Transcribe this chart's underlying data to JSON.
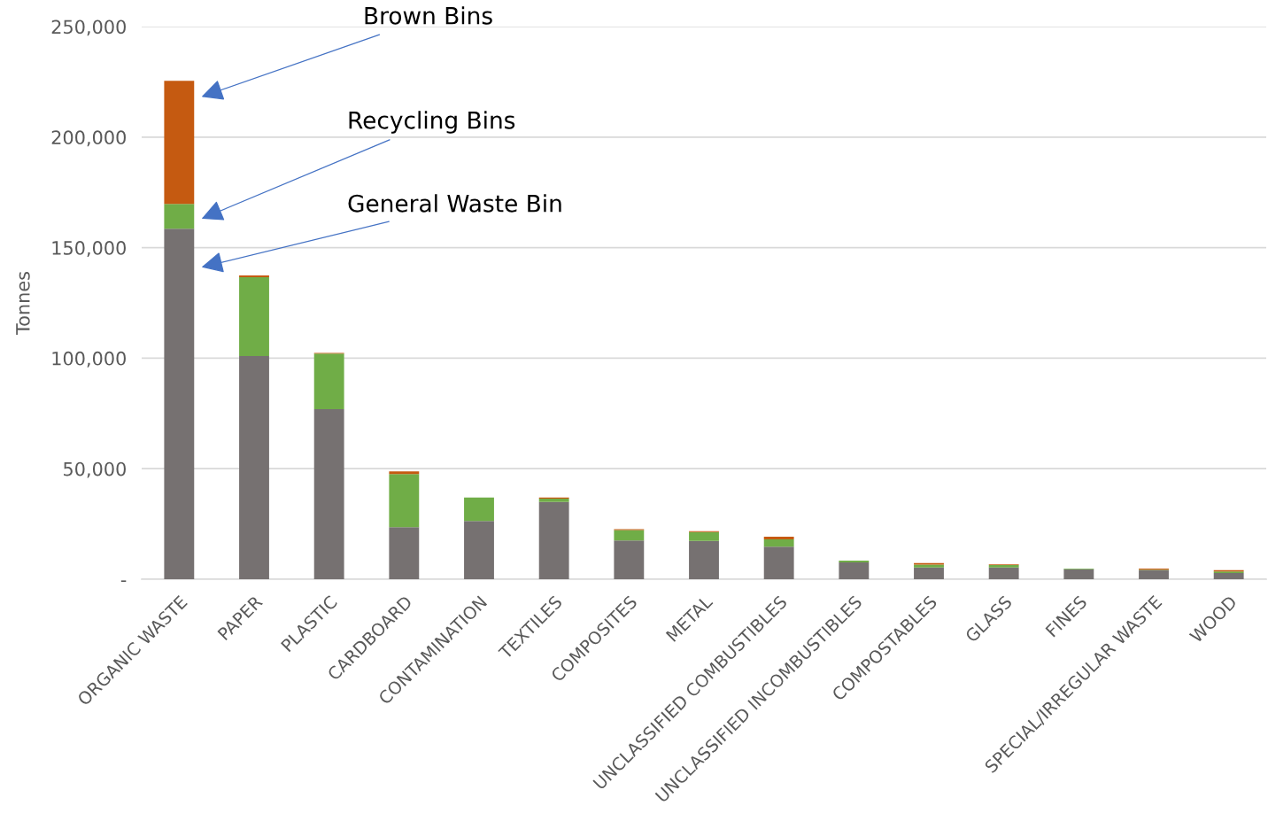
{
  "chart_data": {
    "type": "bar",
    "stacked": true,
    "ylabel": "Tonnes",
    "categories": [
      "ORGANIC WASTE",
      "PAPER",
      "PLASTIC",
      "CARDBOARD",
      "CONTAMINATION",
      "TEXTILES",
      "COMPOSITES",
      "METAL",
      "UNCLASSIFIED COMBUSTIBLES",
      "UNCLASSIFIED INCOMBUSTIBLES",
      "COMPOSTABLES",
      "GLASS",
      "FINES",
      "SPECIAL/IRREGULAR WASTE",
      "WOOD"
    ],
    "series": [
      {
        "color": "#767171",
        "values": [
          158600,
          101000,
          76900,
          23500,
          26300,
          35000,
          17500,
          17300,
          14700,
          7600,
          5300,
          5300,
          4500,
          4100,
          2800
        ]
      },
      {
        "color": "#70ad47",
        "values": [
          11200,
          35600,
          25200,
          24100,
          10700,
          1500,
          4700,
          4000,
          3300,
          800,
          1300,
          1100,
          300,
          200,
          700
        ]
      },
      {
        "color": "#c55a11",
        "values": [
          55700,
          800,
          300,
          1200,
          0,
          500,
          400,
          400,
          1200,
          null,
          700,
          300,
          0,
          500,
          600
        ]
      }
    ],
    "annotations": [
      "Brown Bins",
      "Recycling Bins",
      "General Waste Bin"
    ],
    "ylim": [
      0,
      250000
    ],
    "yticks": [
      {
        "value": 0,
        "label": "-"
      },
      {
        "value": 50000,
        "label": "50,000"
      },
      {
        "value": 100000,
        "label": "100,000"
      },
      {
        "value": 150000,
        "label": "150,000"
      },
      {
        "value": 200000,
        "label": "200,000"
      },
      {
        "value": 250000,
        "label": "250,000"
      }
    ],
    "grid": "y"
  }
}
